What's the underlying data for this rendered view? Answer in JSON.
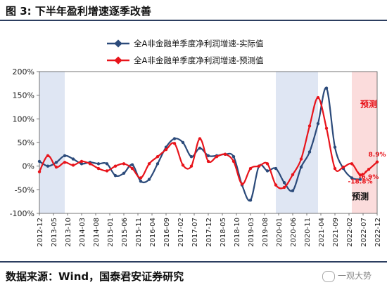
{
  "figure": {
    "title": "图 3:  下半年盈利增速逐季改善",
    "source": "数据来源：Wind，国泰君安证券研究",
    "watermark": "一观大势"
  },
  "chart_data": {
    "type": "line",
    "xlabel": "",
    "ylabel": "",
    "ylim": [
      -100,
      200
    ],
    "yticks": [
      "200%",
      "150%",
      "100%",
      "50%",
      "0%",
      "-50%",
      "-100%"
    ],
    "ytick_values": [
      200,
      150,
      100,
      50,
      0,
      -50,
      -100
    ],
    "x": [
      "2012-12",
      "2013-03",
      "2013-06",
      "2013-09",
      "2013-12",
      "2014-03",
      "2014-06",
      "2014-09",
      "2014-12",
      "2015-03",
      "2015-06",
      "2015-09",
      "2015-12",
      "2016-03",
      "2016-06",
      "2016-09",
      "2016-12",
      "2017-03",
      "2017-06",
      "2017-09",
      "2017-12",
      "2018-03",
      "2018-06",
      "2018-09",
      "2018-12",
      "2019-03",
      "2019-06",
      "2019-09",
      "2019-12",
      "2020-03",
      "2020-06",
      "2020-09",
      "2020-12",
      "2021-03",
      "2021-06",
      "2021-09",
      "2021-12",
      "2022-03",
      "2022-06",
      "2022-09",
      "2022-12"
    ],
    "xtick_labels": [
      "2012-12",
      "2013-05",
      "2013-10",
      "2014-03",
      "2014-08",
      "2015-01",
      "2015-06",
      "2015-11",
      "2016-04",
      "2016-09",
      "2017-02",
      "2017-07",
      "2017-12",
      "2018-05",
      "2018-10",
      "2019-03",
      "2019-08",
      "2020-01",
      "2020-06",
      "2020-11",
      "2021-04",
      "2021-09",
      "2022-02",
      "2022-07",
      "2022-12"
    ],
    "series": [
      {
        "name": "全A非金融单季度净利润增速-实际值",
        "color": "#2b4a7a",
        "values": [
          10,
          0,
          8,
          22,
          15,
          5,
          8,
          5,
          5,
          -20,
          -15,
          3,
          -32,
          -28,
          5,
          40,
          58,
          50,
          20,
          38,
          22,
          22,
          25,
          20,
          -40,
          -72,
          0,
          -10,
          -5,
          -35,
          -52,
          -2,
          30,
          90,
          165,
          40,
          -5,
          -25,
          -28,
          null,
          null
        ]
      },
      {
        "name": "全A非金融单季度净利润增速-预测值",
        "color": "#e8141b",
        "values": [
          -12,
          22,
          -2,
          8,
          2,
          10,
          5,
          -5,
          -10,
          0,
          5,
          -5,
          -25,
          5,
          20,
          35,
          48,
          2,
          0,
          58,
          10,
          20,
          25,
          10,
          -38,
          -5,
          0,
          5,
          -40,
          -45,
          -18,
          15,
          85,
          145,
          80,
          -5,
          -2,
          5,
          -18.8,
          -6.9,
          8.9
        ]
      }
    ],
    "shaded_regions": [
      {
        "from": "2012-12",
        "to": "2013-09",
        "color": "#dfe6f3"
      },
      {
        "from": "2019-12",
        "to": "2021-03",
        "color": "#dfe6f3"
      },
      {
        "from": "2022-03",
        "to": "2022-12",
        "color": "#fbdcdc"
      }
    ],
    "annotations": [
      {
        "text": "预测",
        "color": "#e8141b",
        "at_x": "2022-09",
        "at_y": 125
      },
      {
        "text": "预测",
        "color": "#111111",
        "at_x": "2022-06",
        "at_y": -70
      },
      {
        "text": "8.9%",
        "color": "#e8141b",
        "at_x": "2022-12",
        "at_y": 20
      },
      {
        "text": "-6.9%",
        "color": "#e8141b",
        "at_x": "2022-09",
        "at_y": -27
      },
      {
        "text": "-18.8%",
        "color": "#e8141b",
        "at_x": "2022-06",
        "at_y": -37
      }
    ],
    "legend_position": "top-center",
    "grid": false
  }
}
